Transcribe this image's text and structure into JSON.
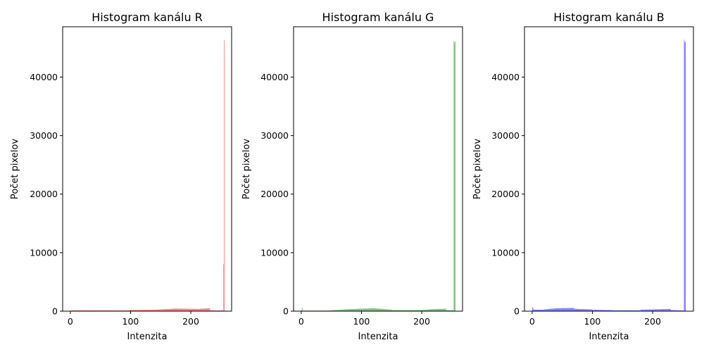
{
  "chart_data": [
    {
      "type": "histogram",
      "title": "Histogram kanálu R",
      "xlabel": "Intenzita",
      "ylabel": "Počet pixelov",
      "color": "#ff0000",
      "alpha": 0.5,
      "xlim": [
        -12.75,
        267.75
      ],
      "ylim": [
        0,
        48600
      ],
      "xticks": [
        0,
        100,
        200
      ],
      "yticks": [
        0,
        10000,
        20000,
        30000,
        40000
      ],
      "grid": false,
      "bin_width": 1,
      "segments": [
        {
          "x": [
            0,
            2
          ],
          "y": [
            100,
            100
          ]
        },
        {
          "x": [
            2,
            98
          ],
          "y": [
            150,
            130
          ]
        },
        {
          "x": [
            98,
            140
          ],
          "y": [
            200,
            250
          ]
        },
        {
          "x": [
            140,
            175
          ],
          "y": [
            250,
            450
          ]
        },
        {
          "x": [
            175,
            215
          ],
          "y": [
            450,
            380
          ]
        },
        {
          "x": [
            215,
            232
          ],
          "y": [
            420,
            500
          ]
        },
        {
          "x": [
            232,
            244
          ],
          "y": [
            150,
            120
          ]
        },
        {
          "x": [
            244,
            254
          ],
          "y": [
            120,
            120
          ]
        }
      ],
      "spikes": [
        {
          "x": 254,
          "y": 8000
        },
        {
          "x": 255,
          "y": 46300
        }
      ]
    },
    {
      "type": "histogram",
      "title": "Histogram kanálu G",
      "xlabel": "Intenzita",
      "ylabel": "Počet pixelov",
      "color": "#008000",
      "alpha": 0.5,
      "xlim": [
        -12.75,
        267.75
      ],
      "ylim": [
        0,
        48600
      ],
      "xticks": [
        0,
        100,
        200
      ],
      "yticks": [
        0,
        10000,
        20000,
        30000,
        40000
      ],
      "grid": false,
      "bin_width": 1,
      "segments": [
        {
          "x": [
            0,
            3
          ],
          "y": [
            150,
            120
          ]
        },
        {
          "x": [
            3,
            48
          ],
          "y": [
            100,
            110
          ]
        },
        {
          "x": [
            48,
            80
          ],
          "y": [
            150,
            350
          ]
        },
        {
          "x": [
            80,
            120
          ],
          "y": [
            350,
            500
          ]
        },
        {
          "x": [
            120,
            150
          ],
          "y": [
            500,
            250
          ]
        },
        {
          "x": [
            150,
            200
          ],
          "y": [
            200,
            200
          ]
        },
        {
          "x": [
            200,
            220
          ],
          "y": [
            200,
            350
          ]
        },
        {
          "x": [
            220,
            240
          ],
          "y": [
            350,
            420
          ]
        },
        {
          "x": [
            240,
            253
          ],
          "y": [
            200,
            150
          ]
        }
      ],
      "spikes": [
        {
          "x": 1,
          "y": 600
        },
        {
          "x": 253,
          "y": 46200
        },
        {
          "x": 254,
          "y": 45800
        },
        {
          "x": 255,
          "y": 46100
        }
      ]
    },
    {
      "type": "histogram",
      "title": "Histogram kanálu B",
      "xlabel": "Intenzita",
      "ylabel": "Počet pixelov",
      "color": "#0000ff",
      "alpha": 0.5,
      "xlim": [
        -12.75,
        267.75
      ],
      "ylim": [
        0,
        48600
      ],
      "xticks": [
        0,
        100,
        200
      ],
      "yticks": [
        0,
        10000,
        20000,
        30000,
        40000
      ],
      "grid": false,
      "bin_width": 1,
      "segments": [
        {
          "x": [
            0,
            2
          ],
          "y": [
            300,
            300
          ]
        },
        {
          "x": [
            2,
            20
          ],
          "y": [
            250,
            250
          ]
        },
        {
          "x": [
            20,
            40
          ],
          "y": [
            300,
            500
          ]
        },
        {
          "x": [
            40,
            70
          ],
          "y": [
            500,
            550
          ]
        },
        {
          "x": [
            70,
            100
          ],
          "y": [
            400,
            300
          ]
        },
        {
          "x": [
            100,
            135
          ],
          "y": [
            250,
            180
          ]
        },
        {
          "x": [
            135,
            180
          ],
          "y": [
            150,
            150
          ]
        },
        {
          "x": [
            180,
            230
          ],
          "y": [
            250,
            380
          ]
        },
        {
          "x": [
            230,
            252
          ],
          "y": [
            200,
            120
          ]
        }
      ],
      "spikes": [
        {
          "x": 0,
          "y": 700
        },
        {
          "x": 1,
          "y": 500
        },
        {
          "x": 252,
          "y": 46400
        },
        {
          "x": 253,
          "y": 45900
        },
        {
          "x": 254,
          "y": 46100
        }
      ]
    }
  ]
}
